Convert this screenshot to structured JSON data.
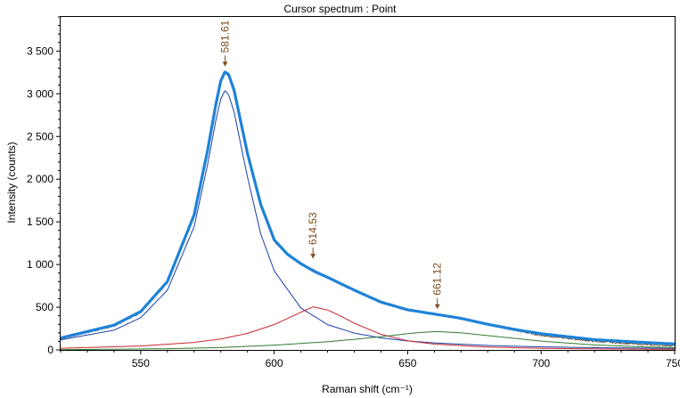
{
  "window": {
    "title": "Cursor spectrum : Point"
  },
  "colors": {
    "spectrum": "#5a3a1e",
    "fit_total": "#1e82d8",
    "peak_1": "#1a3fa8",
    "peak_2": "#c8282a",
    "peak_3": "#2f7a2f",
    "marker": "#7a4a1a",
    "axis": "#000000"
  },
  "chart_data": {
    "type": "line",
    "title": "Cursor spectrum : Point",
    "xlabel": "Raman shift (cm⁻¹)",
    "ylabel": "Intensity (counts)",
    "xlim": [
      520,
      750
    ],
    "ylim": [
      0,
      3900
    ],
    "x_ticks": [
      550,
      600,
      650,
      700,
      750
    ],
    "x_tick_labels": [
      "550",
      "600",
      "650",
      "700",
      "750"
    ],
    "y_ticks": [
      0,
      500,
      1000,
      1500,
      2000,
      2500,
      3000,
      3500
    ],
    "y_tick_labels": [
      "0",
      "500",
      "1 000",
      "1 500",
      "2 000",
      "2 500",
      "3 000",
      "3 500"
    ],
    "grid": false,
    "legend": "none",
    "series": [
      {
        "key": "peak_1",
        "style": "thin",
        "values": [
          [
            520,
            118
          ],
          [
            540,
            231
          ],
          [
            550,
            378
          ],
          [
            560,
            699
          ],
          [
            570,
            1442
          ],
          [
            575,
            2166
          ],
          [
            578,
            2664
          ],
          [
            580,
            2939
          ],
          [
            581.6,
            3040
          ],
          [
            583,
            2982
          ],
          [
            585,
            2784
          ],
          [
            590,
            2024
          ],
          [
            595,
            1352
          ],
          [
            600,
            927
          ],
          [
            610,
            491
          ],
          [
            620,
            296
          ],
          [
            630,
            197
          ],
          [
            640,
            141
          ],
          [
            650,
            105
          ],
          [
            660,
            82
          ],
          [
            680,
            52
          ],
          [
            700,
            36
          ],
          [
            720,
            26
          ],
          [
            750,
            18
          ]
        ]
      },
      {
        "key": "peak_2",
        "style": "thin",
        "values": [
          [
            520,
            19
          ],
          [
            550,
            46
          ],
          [
            570,
            88
          ],
          [
            580,
            128
          ],
          [
            590,
            194
          ],
          [
            600,
            297
          ],
          [
            605,
            368
          ],
          [
            610,
            441
          ],
          [
            614.5,
            505
          ],
          [
            620,
            467
          ],
          [
            625,
            396
          ],
          [
            630,
            313
          ],
          [
            640,
            182
          ],
          [
            650,
            107
          ],
          [
            660,
            68
          ],
          [
            680,
            33
          ],
          [
            700,
            19
          ],
          [
            720,
            12
          ],
          [
            750,
            7
          ]
        ]
      },
      {
        "key": "peak_3",
        "style": "thin",
        "values": [
          [
            520,
            3
          ],
          [
            560,
            14
          ],
          [
            580,
            28
          ],
          [
            600,
            56
          ],
          [
            620,
            96
          ],
          [
            630,
            124
          ],
          [
            640,
            155
          ],
          [
            650,
            190
          ],
          [
            655,
            205
          ],
          [
            661,
            215
          ],
          [
            670,
            200
          ],
          [
            680,
            168
          ],
          [
            690,
            136
          ],
          [
            700,
            103
          ],
          [
            720,
            58
          ],
          [
            740,
            34
          ],
          [
            750,
            27
          ]
        ]
      },
      {
        "key": "fit_total",
        "style": "thick",
        "values": [
          [
            520,
            140
          ],
          [
            540,
            290
          ],
          [
            550,
            450
          ],
          [
            560,
            800
          ],
          [
            570,
            1580
          ],
          [
            575,
            2330
          ],
          [
            578,
            2850
          ],
          [
            580,
            3150
          ],
          [
            581.6,
            3260
          ],
          [
            583,
            3220
          ],
          [
            585,
            3040
          ],
          [
            590,
            2300
          ],
          [
            595,
            1700
          ],
          [
            600,
            1290
          ],
          [
            605,
            1120
          ],
          [
            610,
            1010
          ],
          [
            615,
            920
          ],
          [
            620,
            850
          ],
          [
            630,
            700
          ],
          [
            640,
            560
          ],
          [
            650,
            470
          ],
          [
            660,
            420
          ],
          [
            670,
            370
          ],
          [
            680,
            300
          ],
          [
            690,
            240
          ],
          [
            700,
            190
          ],
          [
            720,
            120
          ],
          [
            740,
            85
          ],
          [
            750,
            70
          ]
        ]
      },
      {
        "key": "spectrum",
        "style": "noisy",
        "values": [
          [
            520,
            130
          ],
          [
            540,
            280
          ],
          [
            550,
            440
          ],
          [
            560,
            790
          ],
          [
            570,
            1570
          ],
          [
            575,
            2320
          ],
          [
            578,
            2840
          ],
          [
            580,
            3160
          ],
          [
            581.6,
            3250
          ],
          [
            583,
            3220
          ],
          [
            585,
            3030
          ],
          [
            590,
            2290
          ],
          [
            595,
            1700
          ],
          [
            600,
            1280
          ],
          [
            605,
            1120
          ],
          [
            610,
            1010
          ],
          [
            615,
            930
          ],
          [
            620,
            850
          ],
          [
            630,
            700
          ],
          [
            640,
            560
          ],
          [
            650,
            470
          ],
          [
            660,
            420
          ],
          [
            670,
            370
          ],
          [
            680,
            300
          ],
          [
            690,
            230
          ],
          [
            700,
            170
          ],
          [
            720,
            100
          ],
          [
            740,
            60
          ],
          [
            750,
            50
          ]
        ]
      }
    ],
    "annotations": [
      {
        "label": "581.61",
        "x": 581.61,
        "y": 3260
      },
      {
        "label": "614.53",
        "x": 614.53,
        "y": 1010
      },
      {
        "label": "661.12",
        "x": 661.12,
        "y": 420
      }
    ]
  }
}
